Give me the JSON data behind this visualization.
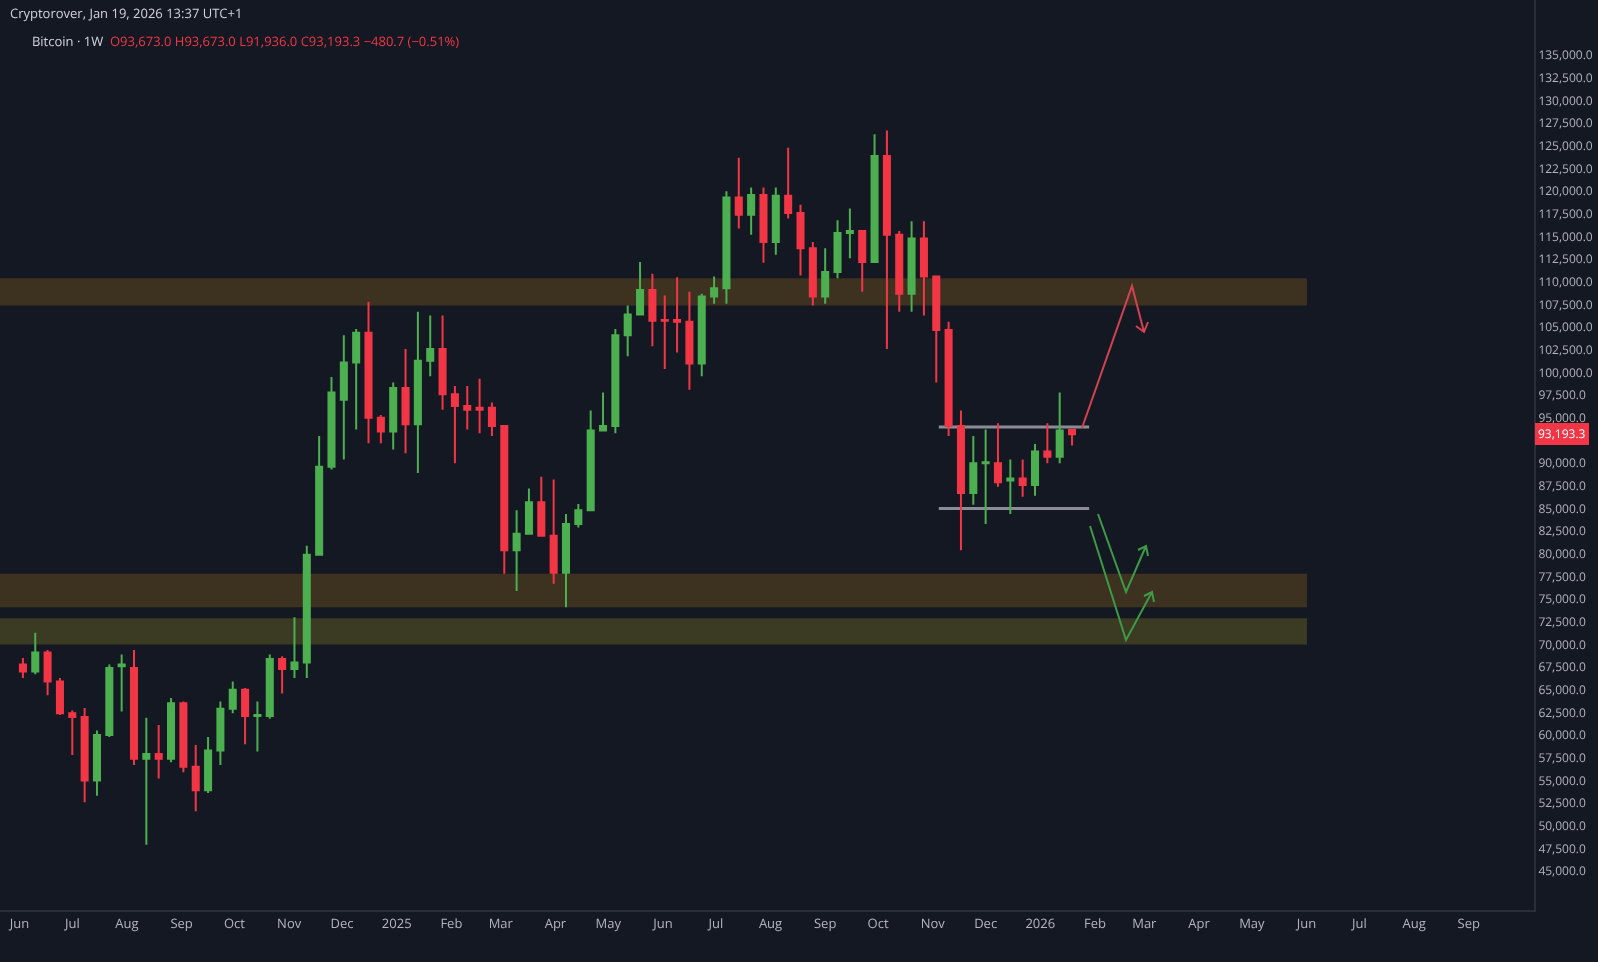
{
  "chart_data": {
    "type": "candlestick",
    "title": "Bitcoin · 1W",
    "annotations": [
      "Cryptorover, Jan 19, 2026 13:37 UTC+1",
      "O93,673.0 H93,673.0 L91,936.0 C93,193.3 −480.7 (−0.51%)",
      {
        "text": "93,193.3",
        "y": 93193.3
      }
    ],
    "x": [
      "2024-06-03",
      "2024-06-10",
      "2024-06-17",
      "2024-06-24",
      "2024-07-01",
      "2024-07-08",
      "2024-07-15",
      "2024-07-22",
      "2024-07-29",
      "2024-08-05",
      "2024-08-12",
      "2024-08-19",
      "2024-08-26",
      "2024-09-02",
      "2024-09-09",
      "2024-09-16",
      "2024-09-23",
      "2024-09-30",
      "2024-10-07",
      "2024-10-14",
      "2024-10-21",
      "2024-10-28",
      "2024-11-04",
      "2024-11-11",
      "2024-11-18",
      "2024-11-25",
      "2024-12-02",
      "2024-12-09",
      "2024-12-16",
      "2024-12-23",
      "2024-12-30",
      "2025-01-06",
      "2025-01-13",
      "2025-01-20",
      "2025-01-27",
      "2025-02-03",
      "2025-02-10",
      "2025-02-17",
      "2025-02-24",
      "2025-03-03",
      "2025-03-10",
      "2025-03-17",
      "2025-03-24",
      "2025-03-31",
      "2025-04-07",
      "2025-04-14",
      "2025-04-21",
      "2025-04-28",
      "2025-05-05",
      "2025-05-12",
      "2025-05-19",
      "2025-05-26",
      "2025-06-02",
      "2025-06-09",
      "2025-06-16",
      "2025-06-23",
      "2025-06-30",
      "2025-07-07",
      "2025-07-14",
      "2025-07-21",
      "2025-07-28",
      "2025-08-04",
      "2025-08-11",
      "2025-08-18",
      "2025-08-25",
      "2025-09-01",
      "2025-09-08",
      "2025-09-15",
      "2025-09-22",
      "2025-09-29",
      "2025-10-06",
      "2025-10-13",
      "2025-10-20",
      "2025-10-27",
      "2025-11-03",
      "2025-11-10",
      "2025-11-17",
      "2025-11-24",
      "2025-12-01",
      "2025-12-08",
      "2025-12-15",
      "2025-12-22",
      "2025-12-29",
      "2026-01-05",
      "2026-01-12",
      "2026-01-19"
    ],
    "ohlc": [
      [
        67800,
        68500,
        66300,
        67000
      ],
      [
        67000,
        71300,
        66700,
        69100
      ],
      [
        69100,
        69400,
        64400,
        65900
      ],
      [
        65900,
        66300,
        62200,
        62400
      ],
      [
        62400,
        62700,
        57800,
        62000
      ],
      [
        62000,
        63000,
        52600,
        55000
      ],
      [
        55000,
        60500,
        53300,
        60000
      ],
      [
        60000,
        67800,
        59800,
        67400
      ],
      [
        67600,
        68900,
        62600,
        67800
      ],
      [
        67400,
        69400,
        56700,
        57400
      ],
      [
        57400,
        61900,
        47900,
        57900
      ],
      [
        57900,
        61100,
        55200,
        57400
      ],
      [
        57400,
        64100,
        57000,
        63500
      ],
      [
        63500,
        63700,
        55900,
        56500
      ],
      [
        56500,
        58900,
        51600,
        53900
      ],
      [
        53900,
        59800,
        53600,
        58300
      ],
      [
        58300,
        63700,
        56700,
        62900
      ],
      [
        62900,
        65900,
        62400,
        65000
      ],
      [
        65000,
        65200,
        59000,
        62100
      ],
      [
        62100,
        63700,
        58200,
        62200
      ],
      [
        62100,
        68900,
        61800,
        68400
      ],
      [
        68400,
        68700,
        64600,
        67300
      ],
      [
        67300,
        73000,
        66300,
        68000
      ],
      [
        68000,
        80900,
        66300,
        79900
      ],
      [
        79900,
        93000,
        79900,
        89600
      ],
      [
        89600,
        99500,
        89300,
        97800
      ],
      [
        97000,
        104100,
        90400,
        101100
      ],
      [
        101100,
        104800,
        93700,
        104400
      ],
      [
        104400,
        107800,
        92200,
        95000
      ],
      [
        95000,
        95300,
        92200,
        93500
      ],
      [
        93500,
        98900,
        91500,
        98300
      ],
      [
        98300,
        102600,
        91100,
        94300
      ],
      [
        94300,
        106700,
        88900,
        101300
      ],
      [
        101300,
        106300,
        99600,
        102600
      ],
      [
        102600,
        106300,
        95900,
        97600
      ],
      [
        97600,
        98500,
        90000,
        96300
      ],
      [
        96300,
        98500,
        93700,
        95900
      ],
      [
        96100,
        99300,
        93300,
        95900
      ],
      [
        96100,
        96700,
        93000,
        94100
      ],
      [
        94100,
        94100,
        77800,
        80400
      ],
      [
        80400,
        84800,
        75900,
        82200
      ],
      [
        82200,
        87200,
        82200,
        85700
      ],
      [
        85700,
        88500,
        82000,
        82000
      ],
      [
        82000,
        88200,
        76700,
        77900
      ],
      [
        77900,
        84400,
        74100,
        83300
      ],
      [
        83300,
        85500,
        82900,
        84800
      ],
      [
        84800,
        95800,
        84800,
        93600
      ],
      [
        93600,
        97800,
        93600,
        94100
      ],
      [
        94100,
        104800,
        93300,
        104100
      ],
      [
        104100,
        107400,
        101800,
        106400
      ],
      [
        106400,
        112200,
        106300,
        109100
      ],
      [
        109100,
        110900,
        102900,
        105700
      ],
      [
        105800,
        108500,
        100400,
        105700
      ],
      [
        105800,
        110500,
        102200,
        105600
      ],
      [
        105600,
        108900,
        98100,
        101000
      ],
      [
        101000,
        108700,
        99600,
        108400
      ],
      [
        108400,
        110600,
        107600,
        109300
      ],
      [
        109300,
        120000,
        107600,
        119300
      ],
      [
        119300,
        123700,
        115900,
        117400
      ],
      [
        117400,
        120400,
        115200,
        119600
      ],
      [
        119600,
        120400,
        112100,
        114400
      ],
      [
        114400,
        120400,
        113000,
        119500
      ],
      [
        119500,
        124800,
        117000,
        117600
      ],
      [
        117600,
        118500,
        110700,
        113700
      ],
      [
        113700,
        114400,
        107400,
        108400
      ],
      [
        108400,
        113700,
        107600,
        111100
      ],
      [
        111100,
        116800,
        110400,
        115400
      ],
      [
        115400,
        118100,
        112600,
        115600
      ],
      [
        115600,
        115600,
        108900,
        112200
      ],
      [
        112200,
        126300,
        112200,
        123900
      ],
      [
        123900,
        126700,
        102600,
        115200
      ],
      [
        115200,
        115600,
        106700,
        108700
      ],
      [
        108700,
        116700,
        106700,
        114800
      ],
      [
        114800,
        116700,
        106300,
        110600
      ],
      [
        110600,
        110600,
        98900,
        104700
      ],
      [
        104700,
        105600,
        93000,
        94100
      ],
      [
        94100,
        95800,
        80400,
        86700
      ],
      [
        86700,
        93000,
        85400,
        90000
      ],
      [
        90000,
        93700,
        83300,
        90100
      ],
      [
        90000,
        94400,
        87400,
        87900
      ],
      [
        88100,
        90400,
        84400,
        88300
      ],
      [
        88300,
        90400,
        86300,
        87600
      ],
      [
        87600,
        92100,
        86400,
        91300
      ],
      [
        91300,
        94400,
        90000,
        90700
      ],
      [
        90700,
        97800,
        90000,
        93600
      ],
      [
        93673,
        93673,
        91936,
        93193.3
      ]
    ],
    "colors": [
      "#f23645",
      "#4caf50",
      "#f23645",
      "#f23645",
      "#f23645",
      "#f23645",
      "#4caf50",
      "#4caf50",
      "#4caf50",
      "#f23645",
      "#4caf50",
      "#f23645",
      "#4caf50",
      "#f23645",
      "#f23645",
      "#4caf50",
      "#4caf50",
      "#4caf50",
      "#f23645",
      "#4caf50",
      "#4caf50",
      "#f23645",
      "#4caf50",
      "#4caf50",
      "#4caf50",
      "#4caf50",
      "#4caf50",
      "#4caf50",
      "#f23645",
      "#f23645",
      "#4caf50",
      "#f23645",
      "#4caf50",
      "#4caf50",
      "#f23645",
      "#f23645",
      "#f23645",
      "#f23645",
      "#f23645",
      "#f23645",
      "#4caf50",
      "#4caf50",
      "#f23645",
      "#f23645",
      "#4caf50",
      "#4caf50",
      "#4caf50",
      "#4caf50",
      "#4caf50",
      "#4caf50",
      "#4caf50",
      "#f23645",
      "#f23645",
      "#f23645",
      "#f23645",
      "#4caf50",
      "#4caf50",
      "#4caf50",
      "#f23645",
      "#4caf50",
      "#f23645",
      "#4caf50",
      "#f23645",
      "#f23645",
      "#f23645",
      "#4caf50",
      "#4caf50",
      "#4caf50",
      "#f23645",
      "#4caf50",
      "#f23645",
      "#f23645",
      "#4caf50",
      "#f23645",
      "#f23645",
      "#f23645",
      "#f23645",
      "#4caf50",
      "#4caf50",
      "#f23645",
      "#4caf50",
      "#f23645",
      "#4caf50",
      "#f23645",
      "#4caf50",
      "#f23645"
    ],
    "xlim": [
      "2024-05-21",
      "2026-10-08"
    ],
    "xticks": [
      {
        "value": "2024-06-01",
        "label": "Jun"
      },
      {
        "value": "2024-07-01",
        "label": "Jul"
      },
      {
        "value": "2024-08-01",
        "label": "Aug"
      },
      {
        "value": "2024-09-01",
        "label": "Sep"
      },
      {
        "value": "2024-10-01",
        "label": "Oct"
      },
      {
        "value": "2024-11-01",
        "label": "Nov"
      },
      {
        "value": "2024-12-01",
        "label": "Dec"
      },
      {
        "value": "2025-01-01",
        "label": "2025"
      },
      {
        "value": "2025-02-01",
        "label": "Feb"
      },
      {
        "value": "2025-03-01",
        "label": "Mar"
      },
      {
        "value": "2025-04-01",
        "label": "Apr"
      },
      {
        "value": "2025-05-01",
        "label": "May"
      },
      {
        "value": "2025-06-01",
        "label": "Jun"
      },
      {
        "value": "2025-07-01",
        "label": "Jul"
      },
      {
        "value": "2025-08-01",
        "label": "Aug"
      },
      {
        "value": "2025-09-01",
        "label": "Sep"
      },
      {
        "value": "2025-10-01",
        "label": "Oct"
      },
      {
        "value": "2025-11-01",
        "label": "Nov"
      },
      {
        "value": "2025-12-01",
        "label": "Dec"
      },
      {
        "value": "2026-01-01",
        "label": "2026"
      },
      {
        "value": "2026-02-01",
        "label": "Feb"
      },
      {
        "value": "2026-03-01",
        "label": "Mar"
      },
      {
        "value": "2026-04-01",
        "label": "Apr"
      },
      {
        "value": "2026-05-01",
        "label": "May"
      },
      {
        "value": "2026-06-01",
        "label": "Jun"
      },
      {
        "value": "2026-07-01",
        "label": "Jul"
      },
      {
        "value": "2026-08-01",
        "label": "Aug"
      },
      {
        "value": "2026-09-01",
        "label": "Sep"
      }
    ],
    "ylim": [
      40700,
      141100
    ],
    "yticks": [
      {
        "value": 45000,
        "label": "45,000.0"
      },
      {
        "value": 47500,
        "label": "47,500.0"
      },
      {
        "value": 50000,
        "label": "50,000.0"
      },
      {
        "value": 52500,
        "label": "52,500.0"
      },
      {
        "value": 55000,
        "label": "55,000.0"
      },
      {
        "value": 57500,
        "label": "57,500.0"
      },
      {
        "value": 60000,
        "label": "60,000.0"
      },
      {
        "value": 62500,
        "label": "62,500.0"
      },
      {
        "value": 65000,
        "label": "65,000.0"
      },
      {
        "value": 67500,
        "label": "67,500.0"
      },
      {
        "value": 70000,
        "label": "70,000.0"
      },
      {
        "value": 72500,
        "label": "72,500.0"
      },
      {
        "value": 75000,
        "label": "75,000.0"
      },
      {
        "value": 77500,
        "label": "77,500.0"
      },
      {
        "value": 80000,
        "label": "80,000.0"
      },
      {
        "value": 82500,
        "label": "82,500.0"
      },
      {
        "value": 85000,
        "label": "85,000.0"
      },
      {
        "value": 87500,
        "label": "87,500.0"
      },
      {
        "value": 90000,
        "label": "90,000.0"
      },
      {
        "value": 95000,
        "label": "95,000.0"
      },
      {
        "value": 97500,
        "label": "97,500.0"
      },
      {
        "value": 100000,
        "label": "100,000.0"
      },
      {
        "value": 102500,
        "label": "102,500.0"
      },
      {
        "value": 105000,
        "label": "105,000.0"
      },
      {
        "value": 107500,
        "label": "107,500.0"
      },
      {
        "value": 110000,
        "label": "110,000.0"
      },
      {
        "value": 112500,
        "label": "112,500.0"
      },
      {
        "value": 115000,
        "label": "115,000.0"
      },
      {
        "value": 117500,
        "label": "117,500.0"
      },
      {
        "value": 120000,
        "label": "120,000.0"
      },
      {
        "value": 122500,
        "label": "122,500.0"
      },
      {
        "value": 125000,
        "label": "125,000.0"
      },
      {
        "value": 127500,
        "label": "127,500.0"
      },
      {
        "value": 130000,
        "label": "130,000.0"
      },
      {
        "value": 132500,
        "label": "132,500.0"
      },
      {
        "value": 135000,
        "label": "135,000.0"
      }
    ],
    "bands": [
      {
        "axis": "y",
        "from": 107400,
        "to": 110400,
        "color": "#3d3120"
      },
      {
        "axis": "y",
        "from": 74100,
        "to": 77800,
        "color": "#3d3120"
      },
      {
        "axis": "y",
        "from": 70000,
        "to": 72900,
        "color": "#3b3a22"
      }
    ],
    "ref_lines": [
      {
        "axis": "y",
        "value": 94000,
        "color": "#8a8d96"
      },
      {
        "axis": "y",
        "value": 85000,
        "color": "#8a8d96"
      }
    ],
    "grid": false,
    "legend": false
  }
}
